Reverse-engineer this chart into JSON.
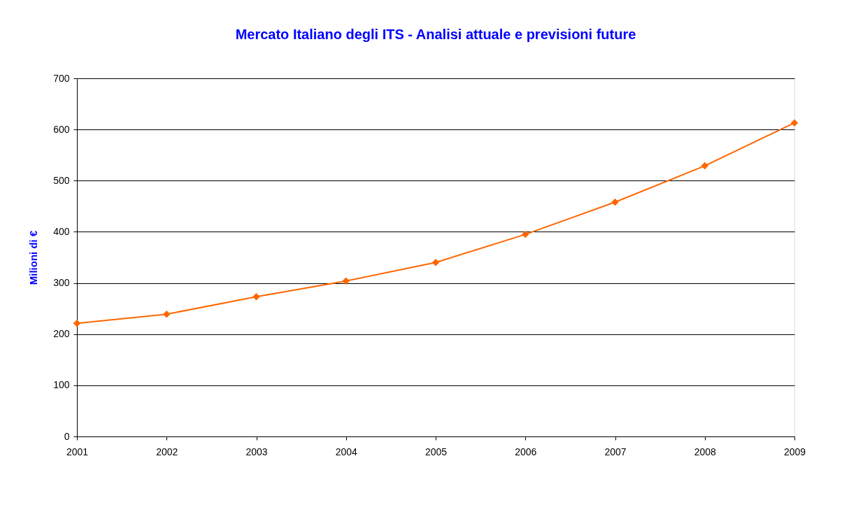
{
  "chart_data": {
    "type": "line",
    "title": "Mercato Italiano degli ITS - Analisi attuale e previsioni future",
    "ylabel": "Milioni di €",
    "x": [
      2001,
      2002,
      2003,
      2004,
      2005,
      2006,
      2007,
      2008,
      2009
    ],
    "series": [
      {
        "color": "#ff6600",
        "values": [
          221,
          239,
          273,
          304,
          340,
          395,
          458,
          529,
          613
        ]
      }
    ],
    "xlim": [
      2001,
      2009
    ],
    "xticks": [
      2001,
      2002,
      2003,
      2004,
      2005,
      2006,
      2007,
      2008,
      2009
    ],
    "ylim": [
      0,
      700
    ],
    "yticks": [
      0,
      100,
      200,
      300,
      400,
      500,
      600,
      700
    ],
    "grid": "y",
    "marker": "diamond",
    "line_style": "solid"
  }
}
